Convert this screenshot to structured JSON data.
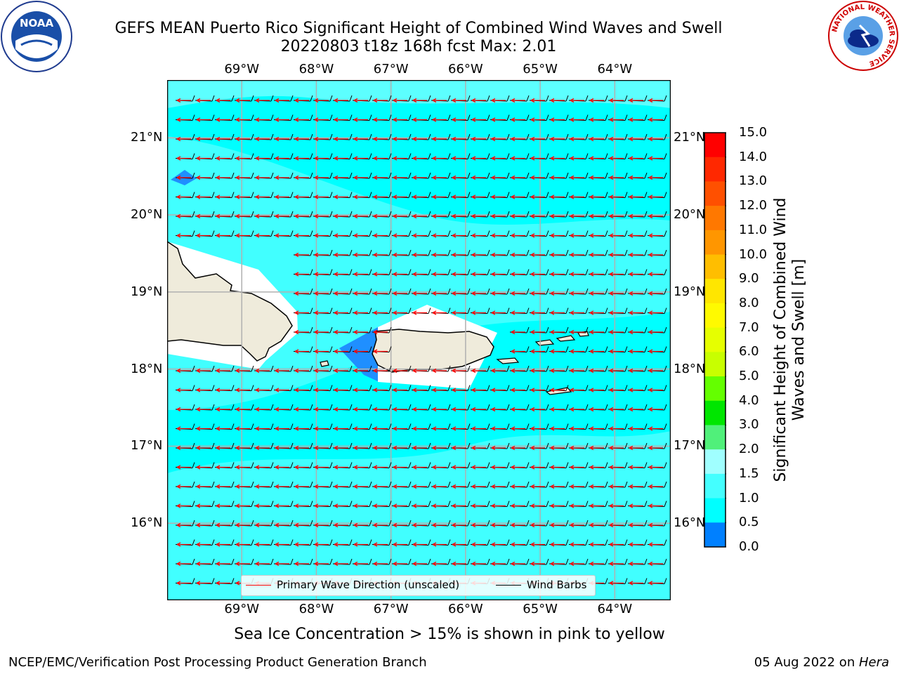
{
  "header": {
    "title_line1": "GEFS MEAN Puerto Rico Significant Height of Combined Wind Waves and Swell",
    "title_line2": "20220803 t18z 168h fcst   Max: 2.01"
  },
  "map": {
    "lon_labels": [
      "69°W",
      "68°W",
      "67°W",
      "66°W",
      "65°W",
      "64°W"
    ],
    "lat_labels": [
      "21°N",
      "20°N",
      "19°N",
      "18°N",
      "17°N",
      "16°N"
    ],
    "lon_range": [
      -70.0,
      -63.25
    ],
    "lat_range": [
      15.0,
      21.75
    ],
    "colors": {
      "ocean": "#00ffff",
      "ocean_light": "#44ffff",
      "land": "#efebdb",
      "wave_arrow": "#ff0000",
      "wind_barb": "#000000"
    }
  },
  "legend": {
    "primary_wave": "Primary Wave Direction (unscaled)",
    "wind_barbs": "Wind Barbs"
  },
  "colorbar": {
    "label": "Significant Height of Combined Wind Waves and Swell [m]",
    "ticks": [
      "15.0",
      "14.0",
      "13.0",
      "12.0",
      "11.0",
      "10.0",
      "9.0",
      "8.0",
      "7.0",
      "6.0",
      "5.0",
      "4.0",
      "3.0",
      "2.0",
      "1.5",
      "1.0",
      "0.5",
      "0.0"
    ],
    "colors": [
      "#ff0000",
      "#ff2800",
      "#ff5000",
      "#ff7800",
      "#ff9600",
      "#ffbe00",
      "#ffe600",
      "#fffa00",
      "#e6ff00",
      "#c8ff00",
      "#64ff00",
      "#00e600",
      "#50f07a",
      "#a0ffff",
      "#44ffff",
      "#00ffff",
      "#0080ff",
      "#0000ff"
    ]
  },
  "caption": "Sea Ice Concentration > 15% is shown in pink to yellow",
  "footer": {
    "left": "NCEP/EMC/Verification Post Processing Product Generation Branch",
    "right_prefix": "05 Aug 2022 on ",
    "right_host": "Hera"
  },
  "logos": {
    "noaa_text": "NOAA",
    "nws_text": "NATIONAL WEATHER SERVICE"
  }
}
